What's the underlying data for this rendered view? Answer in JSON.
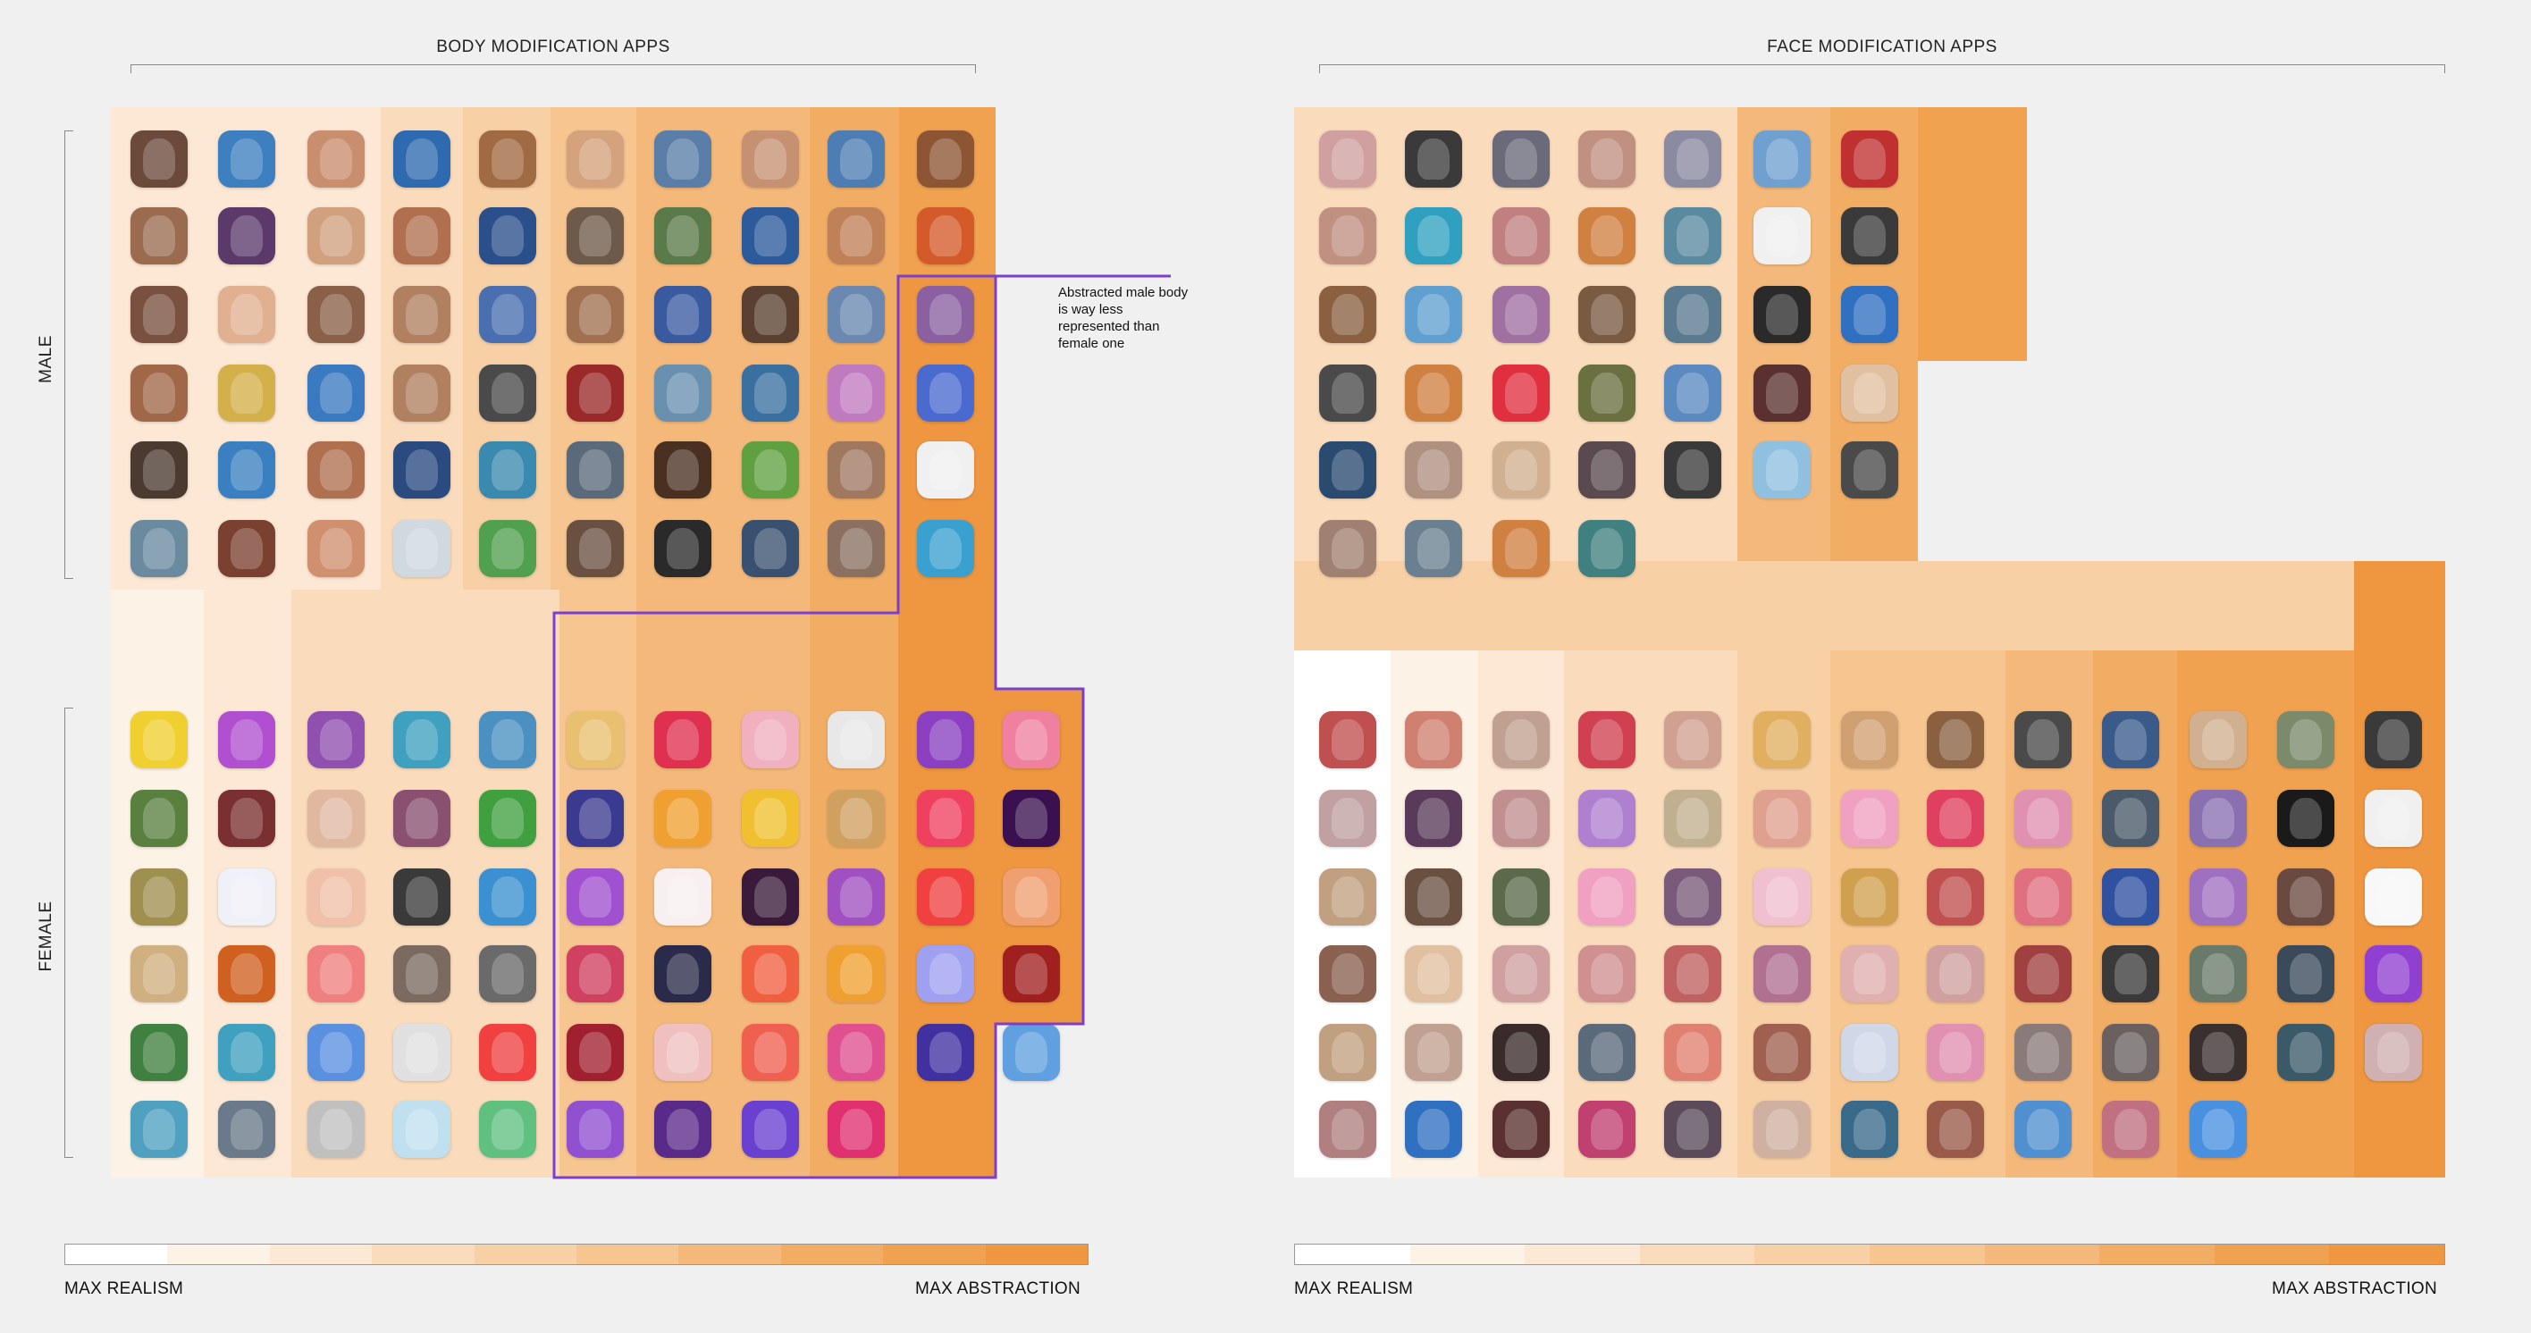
{
  "sections": {
    "body_title": "BODY MODIFICATION APPS",
    "face_title": "FACE MODIFICATION APPS"
  },
  "row_labels": {
    "male": "MALE",
    "female": "FEMALE"
  },
  "annotation": "Abstracted male body is way less represented than female one",
  "scale": {
    "left_label": "MAX REALISM",
    "right_label": "MAX ABSTRACTION",
    "colors": [
      "#ffffff",
      "#fdf2e6",
      "#fce8d4",
      "#fadcbd",
      "#f8d0a6",
      "#f6c590",
      "#f4b97a",
      "#f2ad65",
      "#f0a250",
      "#ee9640"
    ]
  },
  "icons": {
    "body_male": [
      "#6b4a3a",
      "#3d7fbf",
      "#c98e6d",
      "#2d6ab0",
      "#a06a42",
      "#d4a27c",
      "#5a7ea8",
      "#c69173",
      "#4d7db3",
      "#8c5533",
      "#9a6b4f",
      "#5b3a6b",
      "#d1a07f",
      "#b07050",
      "#2a4f8a",
      "#6e5a4a",
      "#5a7a4a",
      "#2d5a9a",
      "#c08058",
      "#d45a2a",
      "#7a5040",
      "#e0b090",
      "#8a6048",
      "#b08060",
      "#4a6fb0",
      "#a07050",
      "#3a5aa0",
      "#5a4030",
      "#6a88b0",
      "#8a60a0",
      "#a06848",
      "#d4b04a",
      "#3a7ac0",
      "#b08060",
      "#4a4a4a",
      "#9a2a2a",
      "#6a90b0",
      "#3a70a0",
      "#c07abf",
      "#4a6ad0",
      "#4a3a30",
      "#3a80c0",
      "#b07050",
      "#2a4a80",
      "#3a8ab0",
      "#5a6a7a",
      "#4a3020",
      "#60a040",
      "#a07860",
      "#f0f0f0",
      "#6a8aa0",
      "#7a4030",
      "#d09070",
      "#d0d8e0",
      "#50a050",
      "#6a5040",
      "#2a2a2a",
      "#3a5070",
      "#8a7060",
      "#3aa0d0"
    ],
    "body_female": [
      "#f0d030",
      "#b050d0",
      "#9050b0",
      "#40a0c0",
      "#4a90c0",
      "#e8c070",
      "#e03050",
      "#f0b0c0",
      "#e8e8e8",
      "#8a40c0",
      "#f080a0",
      "#5a8040",
      "#7a3030",
      "#e0b8a0",
      "#8a5070",
      "#40a040",
      "#3a3a90",
      "#f0a030",
      "#f0c030",
      "#d0a060",
      "#f04060",
      "#3a1050",
      "#a09050",
      "#f0f0f8",
      "#f0c0a8",
      "#3a3a3a",
      "#3a90d0",
      "#a050d0",
      "#f8f0f0",
      "#3a1a3a",
      "#a050c0",
      "#f04040",
      "#f0a070",
      "#d0b080",
      "#d06020",
      "#f08080",
      "#7a6a60",
      "#6a6a6a",
      "#d04060",
      "#2a2a4a",
      "#f06040",
      "#f0a030",
      "#a0a0f0",
      "#a02020",
      "#408040",
      "#40a0c0",
      "#5a90e0",
      "#e0e0e0",
      "#f04040",
      "#a02030",
      "#f0c0c0",
      "#f06050",
      "#e05090",
      "#4030a0",
      "#60a0e0",
      "#50a0c0",
      "#6a7a8a",
      "#c0c0c0",
      "#c0e0f0",
      "#60c080",
      "#9050d0",
      "#5a2a8a",
      "#6a40d0",
      "#e03070"
    ],
    "face_male": [
      "#d0a0a0",
      "#3a3a3a",
      "#6a6a7a",
      "#c09080",
      "#8a8aa0",
      "#70a0d0",
      "#c03030",
      "#c09080",
      "#30a0c0",
      "#c08080",
      "#d08040",
      "#5a8aa0",
      "#f0f0f0",
      "#3a3a3a",
      "#8a6040",
      "#60a0d0",
      "#a070a0",
      "#7a5a40",
      "#5a7a90",
      "#2a2a2a",
      "#3070c0",
      "#4a4a4a",
      "#d08040",
      "#e03040",
      "#6a7040",
      "#5a8ac0",
      "#5a3030",
      "#e0c0a0",
      "#2a4a70",
      "#b09080",
      "#d0b090",
      "#5a4a50",
      "#3a3a3a",
      "#90c0e0",
      "#4a4a4a",
      "#a08070",
      "#6a8090",
      "#d08040",
      "#408080"
    ],
    "face_female": [
      "#c05050",
      "#d08070",
      "#c0a090",
      "#d04050",
      "#d0a090",
      "#e0b060",
      "#d0a070",
      "#8a6040",
      "#4a4a4a",
      "#3a5a8a",
      "#d0b090",
      "#7a8a6a",
      "#3a3a3a",
      "#c0a0a0",
      "#5a3a5a",
      "#c09090",
      "#b080d0",
      "#c0b090",
      "#e0a090",
      "#f0a0c0",
      "#e04060",
      "#e090b0",
      "#4a5a6a",
      "#8a70b0",
      "#1a1a1a",
      "#f0f0f0",
      "#c0a080",
      "#6a5040",
      "#5a6a4a",
      "#f0a0c0",
      "#7a5a7a",
      "#f0c0d0",
      "#d0a050",
      "#c05050",
      "#e07080",
      "#3050a0",
      "#a070c0",
      "#6a4a40",
      "#f8f8f8",
      "#8a6050",
      "#e0c0a0",
      "#d0a0a0",
      "#d09090",
      "#c06060",
      "#b07090",
      "#e0b0b0",
      "#d0a0a0",
      "#a04040",
      "#3a3a3a",
      "#6a7a6a",
      "#3a4a5a",
      "#9040d0",
      "#c0a080",
      "#c0a090",
      "#3a2a2a",
      "#5a6a7a",
      "#e08070",
      "#a06050",
      "#d0d8e8",
      "#e090b0",
      "#8a7a7a",
      "#6a6060",
      "#3a3030",
      "#3a5a6a",
      "#d0b0b0",
      "#b08080",
      "#3070c0",
      "#5a3030",
      "#c04070",
      "#5a4a5a",
      "#d0b0a0",
      "#3a6a8a",
      "#9a5a4a",
      "#5090d0",
      "#c07080",
      "#4a90e0"
    ]
  }
}
